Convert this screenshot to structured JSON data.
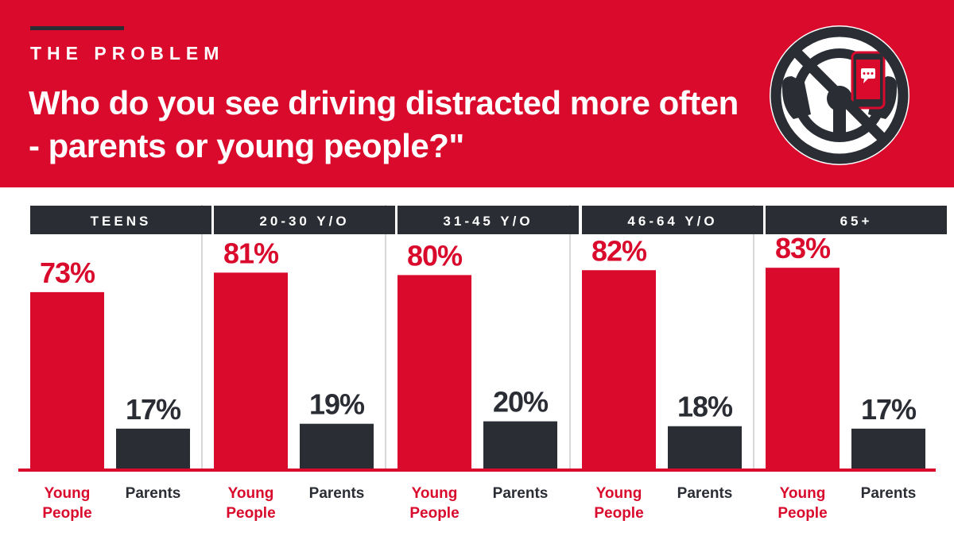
{
  "header": {
    "kicker": "THE PROBLEM",
    "title": "Who do you see driving distracted more often - parents or young people?\""
  },
  "icon": {
    "name": "no-phone-while-driving-icon"
  },
  "colors": {
    "accent_red": "#d90a2c",
    "dark": "#2a2d34",
    "divider": "#d7d7d7",
    "white": "#ffffff"
  },
  "chart_data": {
    "type": "bar",
    "title": "Who do you see driving distracted more often - parents or young people?\"",
    "groups": [
      "TEENS",
      "20-30 Y/O",
      "31-45 Y/O",
      "46-64 Y/O",
      "65+"
    ],
    "series": [
      {
        "name": "Young People",
        "label_lines": [
          "Young",
          "People"
        ],
        "color": "#d90a2c",
        "values": [
          73,
          81,
          80,
          82,
          83
        ]
      },
      {
        "name": "Parents",
        "label_lines": [
          "Parents"
        ],
        "color": "#2a2d34",
        "values": [
          17,
          19,
          20,
          18,
          17
        ]
      }
    ],
    "value_suffix": "%",
    "ylim": [
      0,
      100
    ],
    "grid": false,
    "xlabel": "",
    "ylabel": ""
  }
}
